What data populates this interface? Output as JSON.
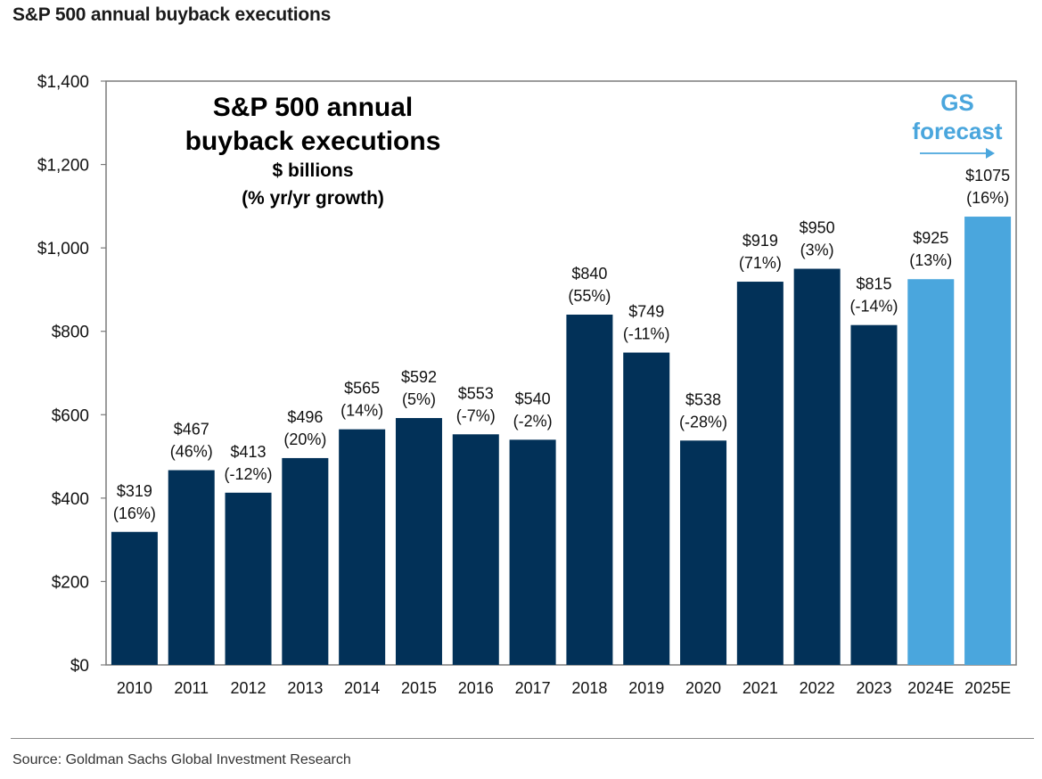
{
  "header": {
    "title": "S&P 500 annual buyback executions"
  },
  "footer": {
    "source": "Source: Goldman Sachs Global Investment Research"
  },
  "colors": {
    "actual": "#023158",
    "forecast": "#4aa6dd",
    "forecast_text": "#4aa6dd"
  },
  "chart_data": {
    "type": "bar",
    "title": "S&P 500 annual buyback executions",
    "subtitle": [
      "$ billions",
      "(% yr/yr growth)"
    ],
    "categories": [
      "2010",
      "2011",
      "2012",
      "2013",
      "2014",
      "2015",
      "2016",
      "2017",
      "2018",
      "2019",
      "2020",
      "2021",
      "2022",
      "2023",
      "2024E",
      "2025E"
    ],
    "values": [
      319,
      467,
      413,
      496,
      565,
      592,
      553,
      540,
      840,
      749,
      538,
      919,
      950,
      815,
      925,
      1075
    ],
    "value_labels": [
      "$319",
      "$467",
      "$413",
      "$496",
      "$565",
      "$592",
      "$553",
      "$540",
      "$840",
      "$749",
      "$538",
      "$919",
      "$950",
      "$815",
      "$925",
      "$1075"
    ],
    "growth_labels": [
      "(16%)",
      "(46%)",
      "(-12%)",
      "(20%)",
      "(14%)",
      "(5%)",
      "(-7%)",
      "(-2%)",
      "(55%)",
      "(-11%)",
      "(-28%)",
      "(71%)",
      "(3%)",
      "(-14%)",
      "(13%)",
      "(16%)"
    ],
    "forecast": [
      false,
      false,
      false,
      false,
      false,
      false,
      false,
      false,
      false,
      false,
      false,
      false,
      false,
      false,
      true,
      true
    ],
    "forecast_label": [
      "GS",
      "forecast"
    ],
    "ylim": [
      0,
      1400
    ],
    "y_ticks": [
      0,
      200,
      400,
      600,
      800,
      1000,
      1200,
      1400
    ],
    "y_tick_labels": [
      "$0",
      "$200",
      "$400",
      "$600",
      "$800",
      "$1,000",
      "$1,200",
      "$1,400"
    ],
    "grid": false,
    "legend": "none"
  }
}
